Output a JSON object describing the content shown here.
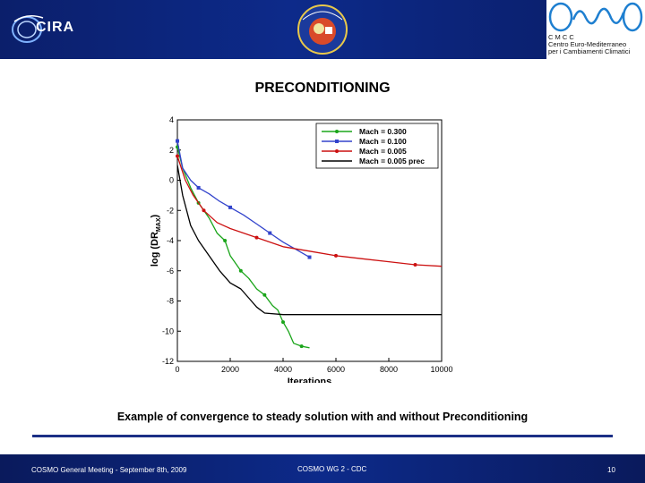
{
  "header": {
    "left_logo_text": "CIRA",
    "center_logo_text": "COSMO",
    "right_logo_line1": "C M C C",
    "right_logo_line2": "Centro  Euro-Mediterraneo",
    "right_logo_line3": "per i Cambiamenti Climatici"
  },
  "slide": {
    "title": "PRECONDITIONING",
    "caption": "Example of convergence to steady solution with and without Preconditioning"
  },
  "footer": {
    "left": "COSMO General Meeting - September 8th, 2009",
    "center": "COSMO WG 2 - CDC",
    "page": "10"
  },
  "chart_data": {
    "type": "line",
    "xlabel": "Iterations",
    "ylabel": "log (DR",
    "ylabel_sub": "MAX",
    "xlim": [
      0,
      10000
    ],
    "ylim": [
      -12,
      4
    ],
    "xticks": [
      0,
      2000,
      4000,
      6000,
      8000,
      10000
    ],
    "yticks": [
      4,
      2,
      0,
      -2,
      -4,
      -6,
      -8,
      -10,
      -12
    ],
    "legend_position": "top-right",
    "series": [
      {
        "name": "Mach = 0.300",
        "color": "#1aa51a",
        "marker": "dot",
        "x": [
          0,
          200,
          500,
          800,
          1200,
          1500,
          1800,
          2000,
          2200,
          2400,
          2700,
          3000,
          3300,
          3600,
          3800,
          4000,
          4200,
          4400,
          4700,
          5000
        ],
        "y": [
          2.2,
          0.8,
          -0.5,
          -1.5,
          -2.5,
          -3.5,
          -4.0,
          -5.0,
          -5.5,
          -6.0,
          -6.5,
          -7.2,
          -7.6,
          -8.3,
          -8.6,
          -9.4,
          -10.0,
          -10.8,
          -11.0,
          -11.1
        ]
      },
      {
        "name": "Mach = 0.100",
        "color": "#3344cc",
        "marker": "square",
        "x": [
          0,
          200,
          500,
          800,
          1200,
          1600,
          2000,
          2500,
          3000,
          3500,
          4000,
          4500,
          5000
        ],
        "y": [
          2.6,
          0.8,
          0.0,
          -0.5,
          -0.9,
          -1.4,
          -1.8,
          -2.3,
          -2.9,
          -3.5,
          -4.1,
          -4.6,
          -5.1
        ]
      },
      {
        "name": "Mach = 0.005",
        "color": "#cc1111",
        "marker": "dot",
        "x": [
          0,
          300,
          600,
          1000,
          1500,
          2000,
          3000,
          4000,
          5000,
          6000,
          7000,
          8000,
          9000,
          10000
        ],
        "y": [
          1.6,
          0.0,
          -1.0,
          -2.0,
          -2.8,
          -3.2,
          -3.8,
          -4.4,
          -4.7,
          -5.0,
          -5.2,
          -5.4,
          -5.6,
          -5.7
        ]
      },
      {
        "name": "Mach = 0.005 prec",
        "color": "#000000",
        "marker": "none",
        "x": [
          0,
          200,
          500,
          800,
          1200,
          1600,
          2000,
          2400,
          2800,
          3000,
          3300,
          4000,
          5000,
          6000,
          7000,
          8000,
          9000,
          10000
        ],
        "y": [
          1.0,
          -1.0,
          -3.0,
          -4.0,
          -5.0,
          -6.0,
          -6.8,
          -7.2,
          -8.0,
          -8.4,
          -8.8,
          -8.9,
          -8.9,
          -8.9,
          -8.9,
          -8.9,
          -8.9,
          -8.9
        ]
      }
    ]
  }
}
